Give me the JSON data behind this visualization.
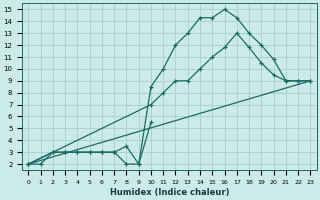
{
  "bg_color": "#cceae7",
  "grid_color": "#aad4d0",
  "line_color": "#1a6b65",
  "marker": "+",
  "markersize": 3.5,
  "linewidth": 0.9,
  "xlabel": "Humidex (Indice chaleur)",
  "xlim": [
    -0.5,
    23.5
  ],
  "ylim": [
    1.5,
    15.5
  ],
  "xticks": [
    0,
    1,
    2,
    3,
    4,
    5,
    6,
    7,
    8,
    9,
    10,
    11,
    12,
    13,
    14,
    15,
    16,
    17,
    18,
    19,
    20,
    21,
    22,
    23
  ],
  "yticks": [
    2,
    3,
    4,
    5,
    6,
    7,
    8,
    9,
    10,
    11,
    12,
    13,
    14,
    15
  ],
  "line1_x": [
    0,
    1,
    2,
    3,
    4,
    5,
    6,
    7,
    8,
    9,
    10,
    11,
    12,
    13,
    14,
    15,
    16,
    17,
    18,
    19,
    20,
    21,
    22,
    23
  ],
  "line1_y": [
    2,
    2,
    3,
    3,
    3,
    3,
    3,
    3,
    2,
    2,
    8.5,
    10,
    12,
    13,
    14.3,
    14.3,
    15,
    14.3,
    13,
    12,
    10.8,
    9,
    9,
    9
  ],
  "line2_x": [
    0,
    10,
    11,
    12,
    13,
    14,
    15,
    16,
    17,
    18,
    19,
    20,
    21,
    22,
    23
  ],
  "line2_y": [
    2,
    7,
    8,
    9,
    9,
    10,
    11,
    11.8,
    13,
    11.8,
    10.5,
    9.5,
    9,
    9,
    9
  ],
  "line3_x": [
    0,
    2,
    3,
    4,
    5,
    6,
    7,
    8,
    9,
    10
  ],
  "line3_y": [
    2,
    3,
    3,
    3,
    3,
    3,
    3,
    3.5,
    2,
    5.5
  ]
}
